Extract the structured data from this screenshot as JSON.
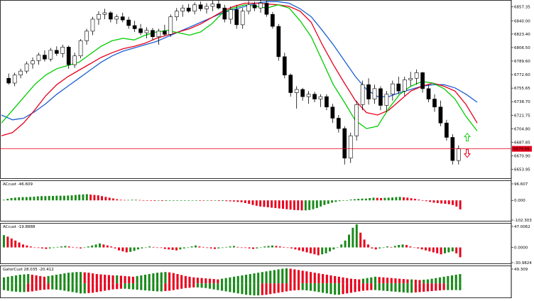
{
  "chart_data": [
    {
      "type": "candlestick",
      "panel": "price",
      "y_ticks": [
        "6857.35",
        "6840.00",
        "6823.40",
        "6806.50",
        "6789.60",
        "6772.60",
        "6755.65",
        "6738.70",
        "6721.75",
        "6704.80",
        "6687.85",
        "6670.90",
        "6653.95"
      ],
      "ylim": [
        6642,
        6866
      ],
      "current_price_label": "6679.66",
      "current_price": 6679.66,
      "colors": {
        "bull": "#ffffff",
        "bear": "#000000",
        "fast_ma": "#00cc00",
        "mid_ma": "#e8001c",
        "slow_ma": "#1a5fd0",
        "price_line": "#e8001c",
        "up_arrow": "#22cc22",
        "down_arrow": "#e8001c"
      },
      "candles": [
        [
          6768,
          6774,
          6760,
          6762
        ],
        [
          6762,
          6775,
          6758,
          6772
        ],
        [
          6772,
          6780,
          6768,
          6777
        ],
        [
          6777,
          6789,
          6774,
          6786
        ],
        [
          6786,
          6794,
          6780,
          6790
        ],
        [
          6790,
          6800,
          6785,
          6797
        ],
        [
          6797,
          6803,
          6789,
          6792
        ],
        [
          6792,
          6806,
          6789,
          6803
        ],
        [
          6803,
          6808,
          6796,
          6799
        ],
        [
          6799,
          6810,
          6794,
          6807
        ],
        [
          6807,
          6809,
          6780,
          6785
        ],
        [
          6785,
          6800,
          6781,
          6796
        ],
        [
          6796,
          6817,
          6793,
          6815
        ],
        [
          6815,
          6830,
          6810,
          6827
        ],
        [
          6827,
          6845,
          6822,
          6842
        ],
        [
          6842,
          6852,
          6835,
          6848
        ],
        [
          6848,
          6855,
          6842,
          6850
        ],
        [
          6850,
          6852,
          6838,
          6842
        ],
        [
          6842,
          6848,
          6836,
          6845
        ],
        [
          6845,
          6850,
          6838,
          6841
        ],
        [
          6841,
          6845,
          6830,
          6834
        ],
        [
          6834,
          6840,
          6826,
          6830
        ],
        [
          6830,
          6836,
          6822,
          6825
        ],
        [
          6825,
          6832,
          6818,
          6828
        ],
        [
          6828,
          6831,
          6816,
          6820
        ],
        [
          6820,
          6830,
          6810,
          6827
        ],
        [
          6827,
          6835,
          6821,
          6823
        ],
        [
          6823,
          6848,
          6820,
          6845
        ],
        [
          6845,
          6856,
          6840,
          6852
        ],
        [
          6852,
          6860,
          6845,
          6856
        ],
        [
          6856,
          6861,
          6850,
          6852
        ],
        [
          6852,
          6863,
          6848,
          6860
        ],
        [
          6860,
          6864,
          6852,
          6855
        ],
        [
          6855,
          6862,
          6849,
          6858
        ],
        [
          6858,
          6865,
          6852,
          6861
        ],
        [
          6861,
          6866,
          6854,
          6856
        ],
        [
          6856,
          6860,
          6838,
          6842
        ],
        [
          6842,
          6858,
          6836,
          6854
        ],
        [
          6854,
          6860,
          6830,
          6835
        ],
        [
          6835,
          6856,
          6830,
          6852
        ],
        [
          6852,
          6865,
          6848,
          6860
        ],
        [
          6860,
          6864,
          6852,
          6856
        ],
        [
          6856,
          6866,
          6850,
          6862
        ],
        [
          6862,
          6865,
          6845,
          6848
        ],
        [
          6848,
          6851,
          6830,
          6833
        ],
        [
          6833,
          6836,
          6790,
          6795
        ],
        [
          6795,
          6800,
          6768,
          6772
        ],
        [
          6772,
          6774,
          6745,
          6750
        ],
        [
          6750,
          6758,
          6730,
          6754
        ],
        [
          6754,
          6756,
          6740,
          6745
        ],
        [
          6745,
          6752,
          6736,
          6748
        ],
        [
          6748,
          6751,
          6738,
          6742
        ],
        [
          6742,
          6748,
          6732,
          6745
        ],
        [
          6745,
          6748,
          6728,
          6732
        ],
        [
          6732,
          6736,
          6712,
          6718
        ],
        [
          6718,
          6722,
          6700,
          6705
        ],
        [
          6705,
          6708,
          6660,
          6668
        ],
        [
          6668,
          6700,
          6662,
          6696
        ],
        [
          6696,
          6740,
          6690,
          6735
        ],
        [
          6735,
          6765,
          6728,
          6760
        ],
        [
          6760,
          6768,
          6735,
          6742
        ],
        [
          6742,
          6760,
          6736,
          6755
        ],
        [
          6755,
          6758,
          6728,
          6734
        ],
        [
          6734,
          6752,
          6726,
          6748
        ],
        [
          6748,
          6765,
          6740,
          6761
        ],
        [
          6761,
          6770,
          6748,
          6752
        ],
        [
          6752,
          6770,
          6746,
          6766
        ],
        [
          6766,
          6776,
          6758,
          6768
        ],
        [
          6768,
          6779,
          6760,
          6775
        ],
        [
          6775,
          6776,
          6750,
          6755
        ],
        [
          6755,
          6760,
          6738,
          6742
        ],
        [
          6742,
          6748,
          6726,
          6732
        ],
        [
          6732,
          6740,
          6708,
          6712
        ],
        [
          6712,
          6716,
          6690,
          6694
        ],
        [
          6694,
          6698,
          6660,
          6665
        ],
        [
          6665,
          6684,
          6660,
          6680
        ]
      ],
      "fast_ma": [
        6712,
        6728,
        6744,
        6760,
        6772,
        6780,
        6784,
        6788,
        6798,
        6808,
        6815,
        6818,
        6816,
        6822,
        6826,
        6828,
        6825,
        6822,
        6826,
        6836,
        6850,
        6856,
        6860,
        6858,
        6856,
        6860,
        6856,
        6840,
        6820,
        6790,
        6760,
        6738,
        6715,
        6705,
        6708,
        6730,
        6748,
        6758,
        6764,
        6762,
        6755,
        6742,
        6720,
        6702
      ],
      "mid_ma": [
        6696,
        6700,
        6712,
        6728,
        6746,
        6760,
        6770,
        6778,
        6786,
        6794,
        6800,
        6805,
        6808,
        6812,
        6818,
        6822,
        6826,
        6830,
        6836,
        6844,
        6852,
        6858,
        6862,
        6862,
        6861,
        6860,
        6858,
        6852,
        6838,
        6810,
        6785,
        6762,
        6740,
        6725,
        6722,
        6728,
        6740,
        6752,
        6758,
        6762,
        6758,
        6752,
        6735,
        6712
      ],
      "slow_ma": [
        6722,
        6716,
        6718,
        6726,
        6736,
        6748,
        6758,
        6768,
        6778,
        6788,
        6796,
        6802,
        6806,
        6810,
        6814,
        6820,
        6826,
        6832,
        6838,
        6844,
        6850,
        6854,
        6858,
        6862,
        6864,
        6864,
        6862,
        6855,
        6845,
        6828,
        6810,
        6790,
        6770,
        6754,
        6745,
        6745,
        6750,
        6754,
        6758,
        6760,
        6760,
        6756,
        6748,
        6738
      ]
    },
    {
      "type": "histogram",
      "panel": "indicator-1",
      "label": "ACcust -46.609",
      "y_ticks": [
        "96.607",
        "0.000",
        "-102.303"
      ],
      "ylim": [
        -102.303,
        96.607
      ],
      "colors": {
        "up": "#1a8a1a",
        "down": "#e8001c"
      },
      "values": [
        3,
        8,
        12,
        14,
        16,
        17,
        17,
        18,
        19,
        21,
        22,
        22,
        23,
        23,
        24,
        24,
        24,
        25,
        26,
        28,
        30,
        31,
        32,
        30,
        28,
        26,
        22,
        18,
        14,
        10,
        6,
        3,
        2,
        2,
        3,
        3,
        2,
        1,
        -1,
        -2,
        -3,
        -2,
        -3,
        -3,
        -2,
        -1,
        -1,
        -1,
        0,
        0,
        1,
        1,
        0,
        -1,
        -1,
        -2,
        -2,
        -3,
        -3,
        -4,
        -5,
        -6,
        -8,
        -10,
        -14,
        -18,
        -24,
        -28,
        -32,
        -34,
        -36,
        -38,
        -40,
        -42,
        -44,
        -46,
        -48,
        -50,
        -51,
        -52,
        -52,
        -50,
        -46,
        -40,
        -32,
        -24,
        -18,
        -12,
        -8,
        -4,
        -2,
        0,
        4,
        6,
        8,
        9,
        9,
        12,
        14,
        13,
        12,
        13,
        14,
        15,
        17,
        18,
        16,
        14,
        11,
        8,
        4,
        0,
        -4,
        -8,
        -12,
        -14,
        -16,
        -18,
        -20,
        -24,
        -32,
        -47
      ]
    },
    {
      "type": "histogram",
      "panel": "indicator-2",
      "label": "ACcust -19.8888",
      "y_ticks": [
        "47.0062",
        "0.0000",
        "-30.9824"
      ],
      "ylim": [
        -30.9824,
        47.0062
      ],
      "colors": {
        "up": "#1a8a1a",
        "down": "#e8001c"
      },
      "values": [
        25,
        22,
        18,
        14,
        10,
        6,
        4,
        2,
        0,
        -1,
        -2,
        -3,
        -2,
        -1,
        1,
        2,
        3,
        2,
        1,
        -1,
        -2,
        0,
        2,
        4,
        6,
        8,
        6,
        4,
        2,
        -2,
        -6,
        -8,
        -10,
        -9,
        -7,
        -4,
        -2,
        0,
        2,
        1,
        0,
        -1,
        -3,
        -4,
        -5,
        -6,
        -4,
        -2,
        0,
        2,
        4,
        2,
        1,
        -1,
        -2,
        -3,
        -2,
        -1,
        1,
        2,
        3,
        1,
        0,
        -1,
        -2,
        -3,
        -2,
        0,
        2,
        3,
        4,
        3,
        2,
        1,
        0,
        -2,
        -4,
        -6,
        -8,
        -10,
        -12,
        -14,
        -16,
        -14,
        -12,
        -8,
        -4,
        0,
        6,
        14,
        26,
        40,
        47,
        30,
        16,
        6,
        -2,
        -4,
        -2,
        0,
        2,
        1,
        3,
        5,
        6,
        5,
        2,
        0,
        -2,
        -4,
        -6,
        -8,
        -10,
        -12,
        -14,
        -12,
        -10,
        -8,
        -12,
        -19.9
      ]
    },
    {
      "type": "histogram",
      "panel": "indicator-3",
      "label": "GatorCust 28.035 -20.412",
      "y_ticks": [
        "49.309"
      ],
      "ylim": [
        -40,
        49.309
      ],
      "colors": {
        "up": "#1a8a1a",
        "down": "#e8001c"
      },
      "upper": [
        18,
        20,
        22,
        24,
        26,
        27,
        28,
        26,
        24,
        22,
        20,
        22,
        24,
        26,
        28,
        30,
        32,
        33,
        34,
        34,
        33,
        32,
        30,
        28,
        27,
        26,
        25,
        24,
        24,
        23,
        22,
        21,
        20,
        22,
        24,
        26,
        28,
        30,
        32,
        33,
        34,
        33,
        31,
        28,
        25,
        22,
        20,
        18,
        17,
        16,
        15,
        14,
        13,
        12,
        14,
        16,
        18,
        20,
        22,
        24,
        26,
        28,
        30,
        32,
        34,
        36,
        38,
        40,
        42,
        44,
        45,
        44,
        42,
        40,
        38,
        36,
        34,
        32,
        30,
        28,
        26,
        24,
        22,
        20,
        18,
        16,
        14,
        13,
        12,
        14,
        16,
        18,
        20,
        19,
        18,
        17,
        16,
        15,
        14,
        13,
        12,
        12,
        11,
        10,
        11,
        12,
        14,
        16,
        18,
        20,
        22,
        24,
        26,
        28
      ],
      "lower": [
        -20,
        -22,
        -24,
        -25,
        -26,
        -26,
        -25,
        -24,
        -22,
        -20,
        -19,
        -18,
        -18,
        -19,
        -20,
        -22,
        -24,
        -26,
        -28,
        -30,
        -30,
        -29,
        -28,
        -26,
        -24,
        -22,
        -20,
        -18,
        -17,
        -16,
        -16,
        -17,
        -18,
        -19,
        -20,
        -21,
        -22,
        -23,
        -24,
        -24,
        -23,
        -22,
        -20,
        -18,
        -16,
        -14,
        -13,
        -12,
        -12,
        -13,
        -14,
        -16,
        -18,
        -20,
        -22,
        -24,
        -26,
        -28,
        -30,
        -32,
        -34,
        -35,
        -36,
        -36,
        -35,
        -34,
        -32,
        -30,
        -28,
        -26,
        -24,
        -22,
        -21,
        -20,
        -20,
        -21,
        -22,
        -24,
        -26,
        -28,
        -30,
        -32,
        -34,
        -34,
        -32,
        -30,
        -28,
        -26,
        -24,
        -22,
        -21,
        -20,
        -20,
        -21,
        -22,
        -23,
        -24,
        -25,
        -26,
        -27,
        -28,
        -28,
        -27,
        -26,
        -25,
        -24,
        -23,
        -22,
        -21,
        -20,
        -20,
        -20,
        -20,
        -20.4
      ]
    }
  ]
}
